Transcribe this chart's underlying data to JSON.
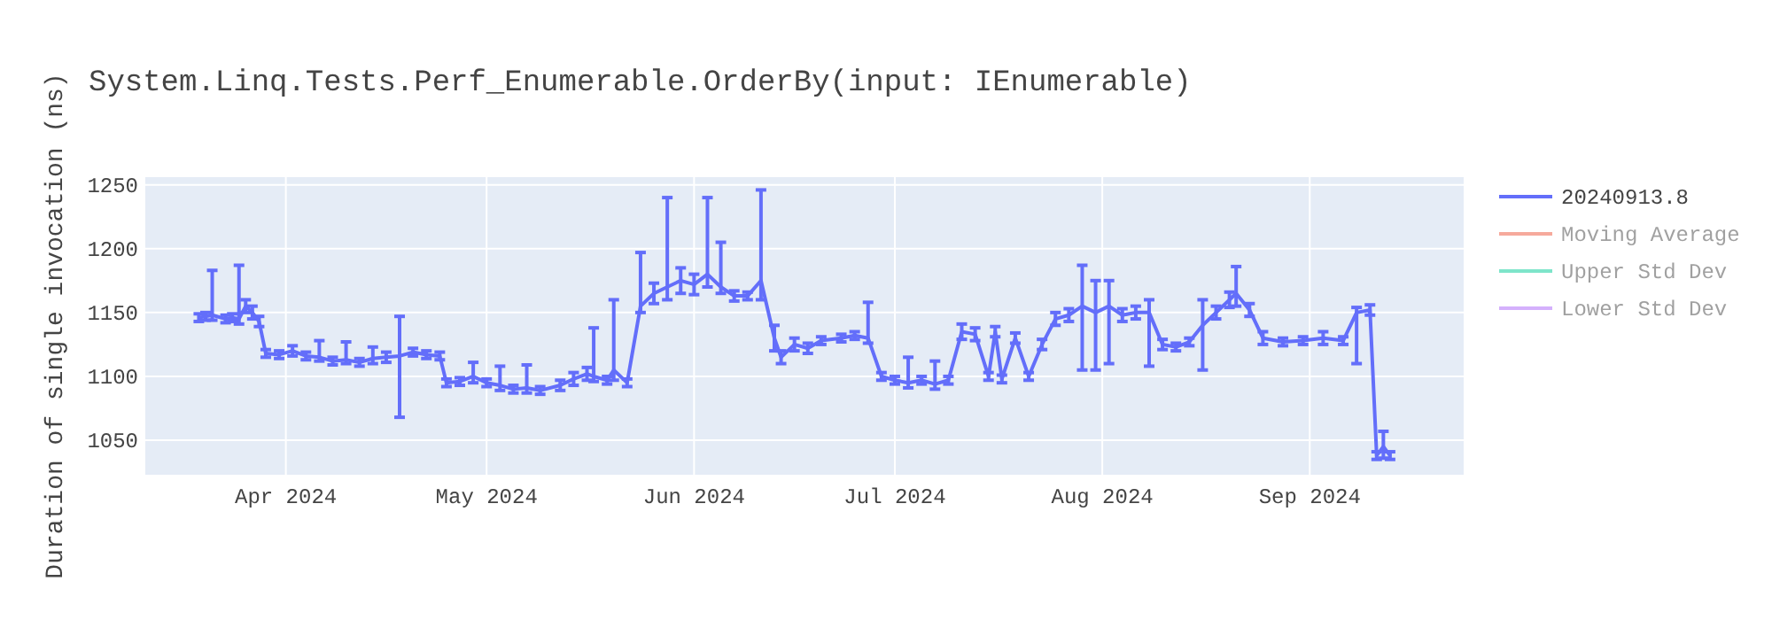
{
  "chart_data": {
    "type": "line",
    "title": "System.Linq.Tests.Perf_Enumerable.OrderBy(input: IEnumerable)",
    "ylabel": "Duration of single invocation (ns)",
    "xlim": [
      "2024-03-11",
      "2024-09-24"
    ],
    "xticks": [
      {
        "value": "2024-04-01",
        "label": "Apr 2024"
      },
      {
        "value": "2024-05-01",
        "label": "May 2024"
      },
      {
        "value": "2024-06-01",
        "label": "Jun 2024"
      },
      {
        "value": "2024-07-01",
        "label": "Jul 2024"
      },
      {
        "value": "2024-08-01",
        "label": "Aug 2024"
      },
      {
        "value": "2024-09-01",
        "label": "Sep 2024"
      }
    ],
    "ylim": [
      1023,
      1256
    ],
    "yticks": [
      1050,
      1100,
      1150,
      1200,
      1250
    ],
    "grid": true,
    "legend": "right",
    "marker": "none",
    "series": [
      {
        "name": "20240913.8",
        "color": "#636efa",
        "x": [
          "2024-03-19",
          "2024-03-20",
          "2024-03-21",
          "2024-03-23",
          "2024-03-24",
          "2024-03-25",
          "2024-03-26",
          "2024-03-27",
          "2024-03-28",
          "2024-03-29",
          "2024-03-31",
          "2024-04-02",
          "2024-04-04",
          "2024-04-06",
          "2024-04-08",
          "2024-04-10",
          "2024-04-12",
          "2024-04-14",
          "2024-04-16",
          "2024-04-18",
          "2024-04-20",
          "2024-04-22",
          "2024-04-24",
          "2024-04-25",
          "2024-04-27",
          "2024-04-29",
          "2024-05-01",
          "2024-05-03",
          "2024-05-05",
          "2024-05-07",
          "2024-05-09",
          "2024-05-12",
          "2024-05-14",
          "2024-05-16",
          "2024-05-17",
          "2024-05-19",
          "2024-05-20",
          "2024-05-22",
          "2024-05-24",
          "2024-05-26",
          "2024-05-28",
          "2024-05-30",
          "2024-06-01",
          "2024-06-03",
          "2024-06-05",
          "2024-06-07",
          "2024-06-09",
          "2024-06-11",
          "2024-06-13",
          "2024-06-14",
          "2024-06-16",
          "2024-06-18",
          "2024-06-20",
          "2024-06-23",
          "2024-06-25",
          "2024-06-27",
          "2024-06-29",
          "2024-07-01",
          "2024-07-03",
          "2024-07-05",
          "2024-07-07",
          "2024-07-09",
          "2024-07-11",
          "2024-07-13",
          "2024-07-15",
          "2024-07-16",
          "2024-07-17",
          "2024-07-19",
          "2024-07-21",
          "2024-07-23",
          "2024-07-25",
          "2024-07-27",
          "2024-07-29",
          "2024-07-31",
          "2024-08-02",
          "2024-08-04",
          "2024-08-06",
          "2024-08-08",
          "2024-08-10",
          "2024-08-12",
          "2024-08-14",
          "2024-08-16",
          "2024-08-18",
          "2024-08-20",
          "2024-08-21",
          "2024-08-23",
          "2024-08-25",
          "2024-08-28",
          "2024-08-31",
          "2024-09-03",
          "2024-09-06",
          "2024-09-08",
          "2024-09-10",
          "2024-09-11",
          "2024-09-12",
          "2024-09-13"
        ],
        "values": [
          1146,
          1147,
          1148,
          1145,
          1146,
          1145,
          1155,
          1150,
          1143,
          1118,
          1117,
          1120,
          1116,
          1115,
          1112,
          1113,
          1111,
          1114,
          1115,
          1116,
          1119,
          1117,
          1116,
          1095,
          1096,
          1100,
          1095,
          1093,
          1090,
          1091,
          1089,
          1093,
          1098,
          1102,
          1100,
          1097,
          1105,
          1095,
          1155,
          1165,
          1170,
          1175,
          1172,
          1180,
          1170,
          1163,
          1163,
          1175,
          1130,
          1115,
          1125,
          1122,
          1128,
          1130,
          1132,
          1130,
          1100,
          1097,
          1095,
          1097,
          1094,
          1097,
          1135,
          1133,
          1100,
          1135,
          1098,
          1130,
          1100,
          1125,
          1145,
          1148,
          1155,
          1150,
          1155,
          1148,
          1150,
          1150,
          1125,
          1123,
          1127,
          1140,
          1150,
          1160,
          1165,
          1152,
          1130,
          1127,
          1128,
          1130,
          1128,
          1150,
          1152,
          1038,
          1045,
          1038
        ],
        "errors": [
          3,
          3,
          [
            1144,
            1183
          ],
          3,
          3,
          [
            1141,
            1187
          ],
          5,
          5,
          4,
          3,
          3,
          4,
          3,
          [
            1112,
            1128
          ],
          3,
          [
            1110,
            1127
          ],
          3,
          [
            1110,
            1123
          ],
          4,
          [
            1068,
            1147
          ],
          3,
          3,
          3,
          3,
          3,
          [
            1095,
            1111
          ],
          3,
          [
            1089,
            1108
          ],
          3,
          [
            1087,
            1109
          ],
          3,
          4,
          5,
          5,
          [
            1096,
            1138
          ],
          3,
          [
            1097,
            1160
          ],
          3,
          [
            1150,
            1197
          ],
          8,
          [
            1160,
            1240
          ],
          10,
          8,
          [
            1170,
            1240
          ],
          [
            1165,
            1205
          ],
          4,
          3,
          [
            1160,
            1246
          ],
          10,
          5,
          5,
          4,
          3,
          3,
          3,
          [
            1126,
            1158
          ],
          3,
          3,
          [
            1091,
            1115
          ],
          3,
          [
            1090,
            1112
          ],
          3,
          6,
          5,
          3,
          4,
          3,
          4,
          3,
          4,
          5,
          5,
          [
            1105,
            1187
          ],
          [
            1105,
            1175
          ],
          [
            1110,
            1175
          ],
          5,
          5,
          [
            1108,
            1160
          ],
          4,
          3,
          3,
          [
            1105,
            1160
          ],
          5,
          6,
          [
            1155,
            1186
          ],
          5,
          5,
          3,
          3,
          5,
          3,
          [
            1110,
            1154
          ],
          4,
          3,
          [
            1036,
            1057
          ],
          3
        ]
      },
      {
        "name": "Moving Average",
        "color": "#ef553b"
      },
      {
        "name": "Upper Std Dev",
        "color": "#00cc96"
      },
      {
        "name": "Lower Std Dev",
        "color": "#ab63fa"
      }
    ]
  }
}
